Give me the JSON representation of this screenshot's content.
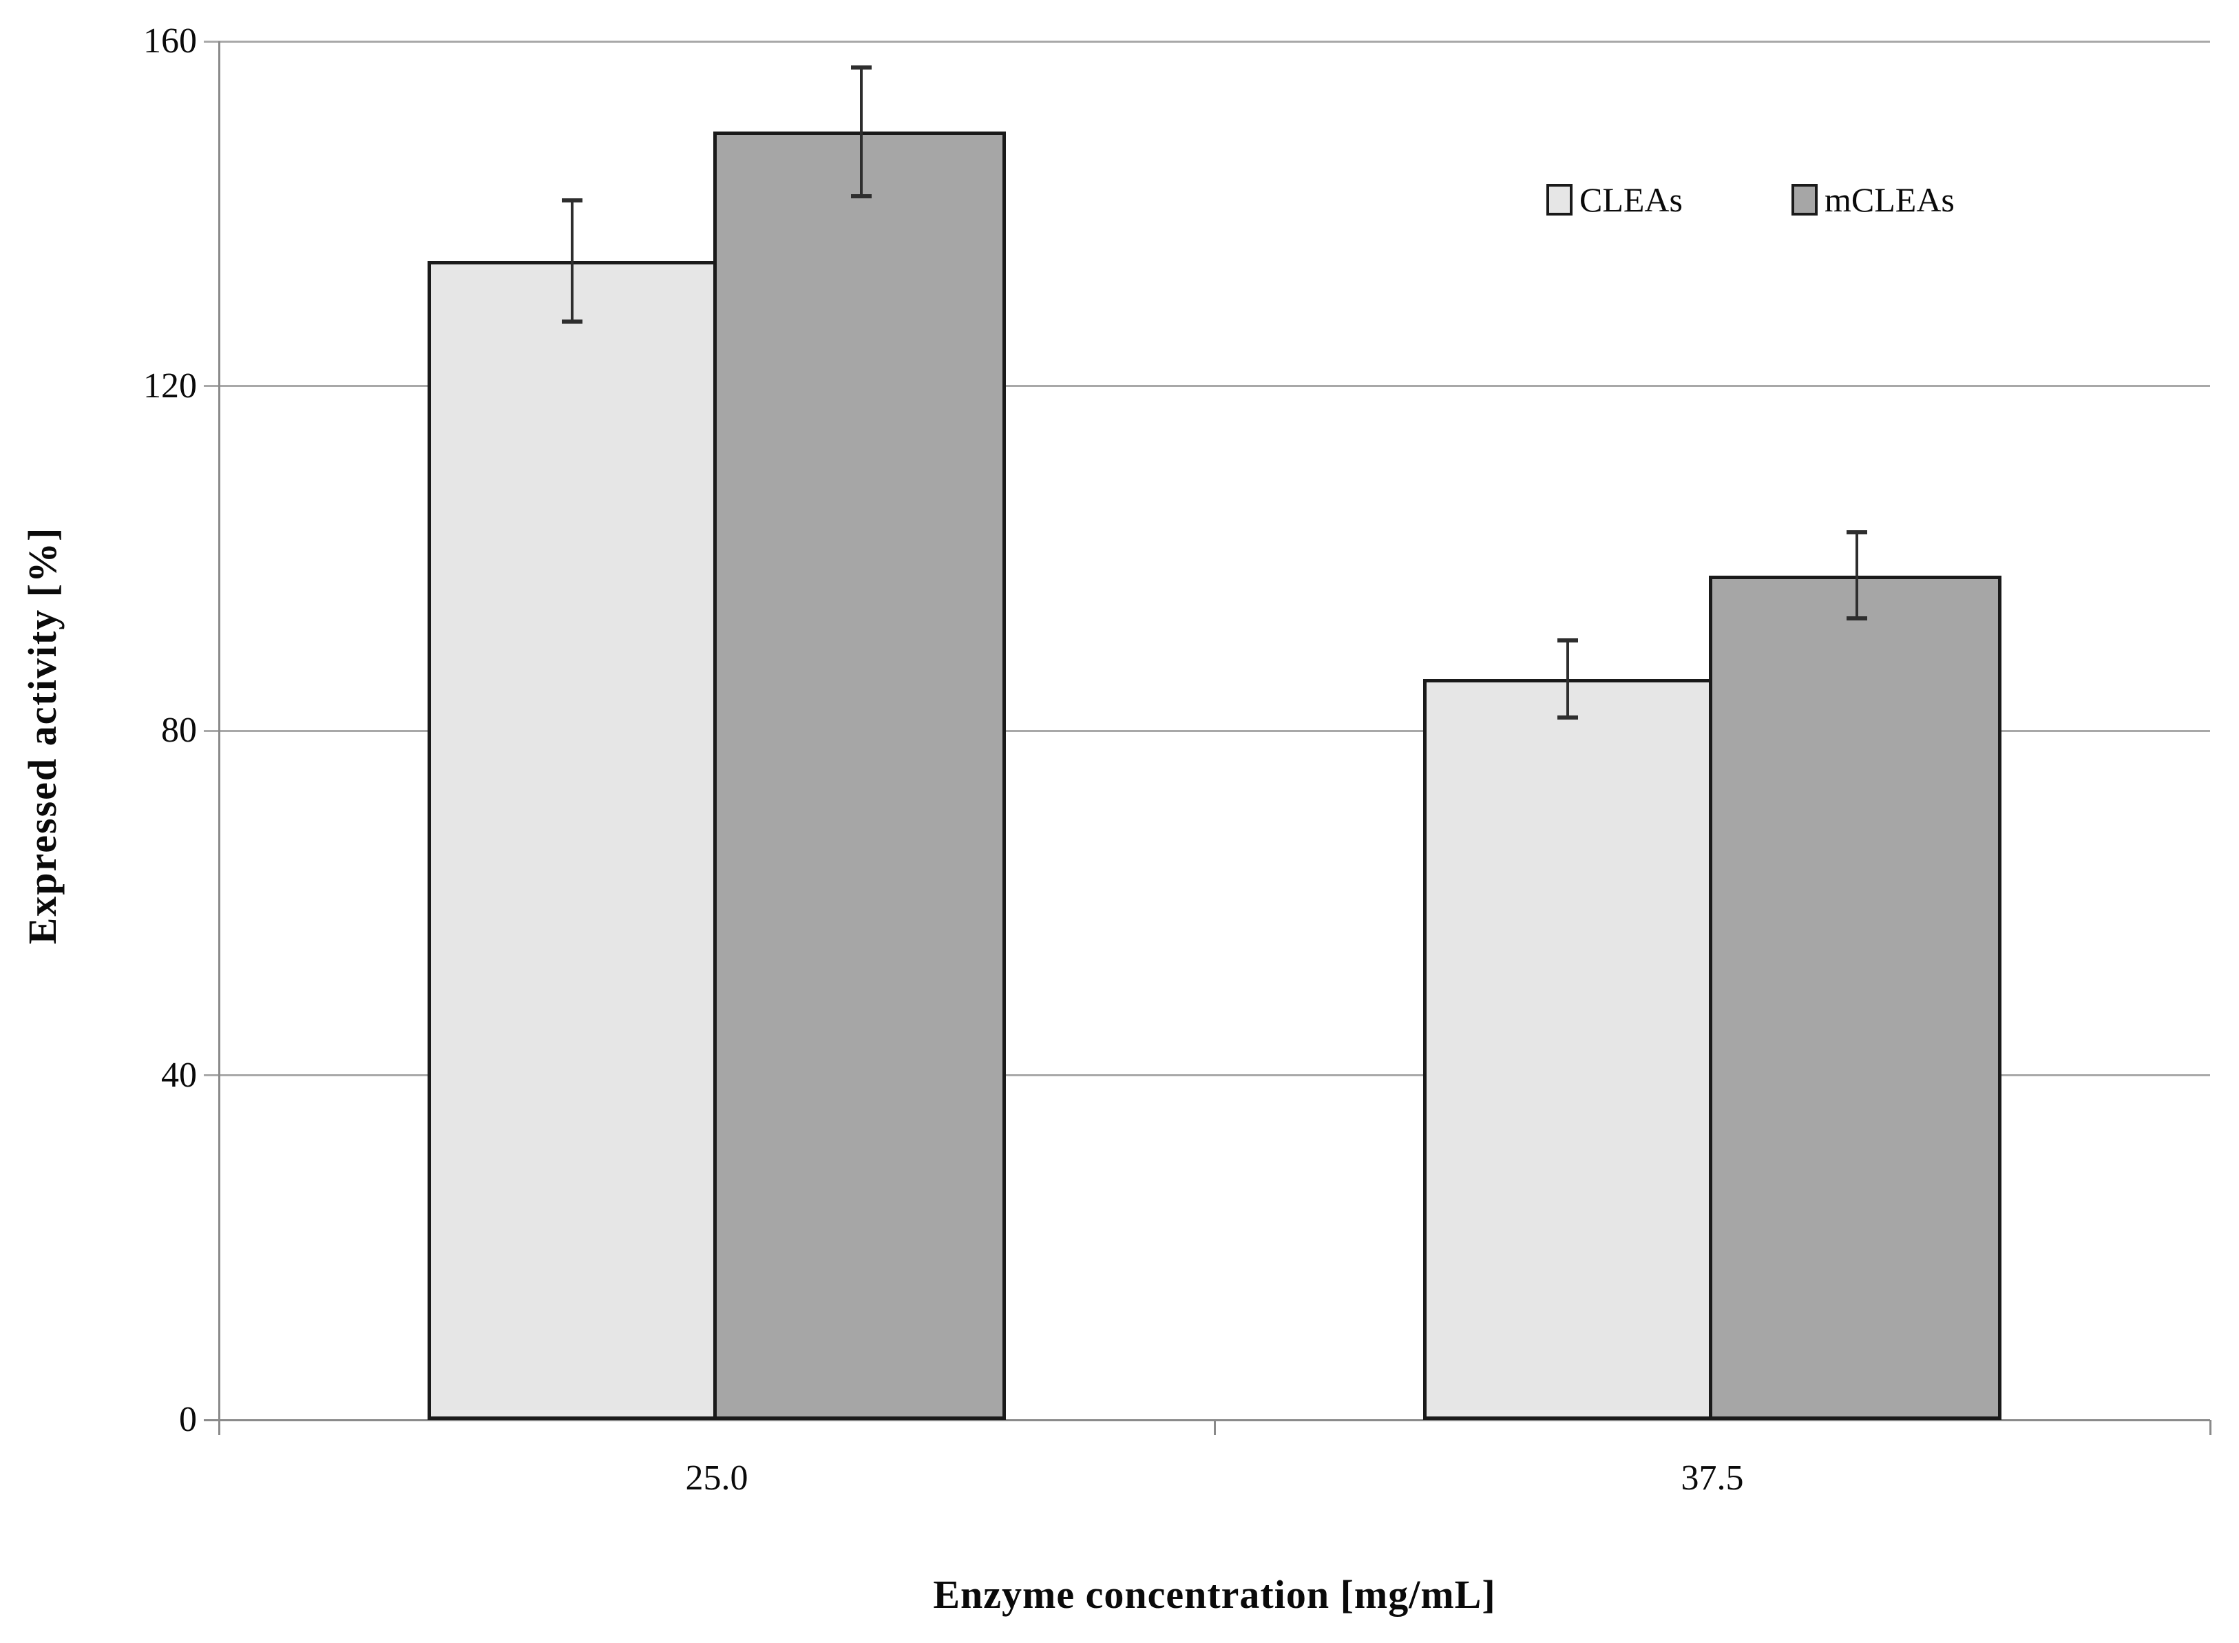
{
  "figure": {
    "background": "#ffffff"
  },
  "chart_data": {
    "type": "bar",
    "title": "",
    "categories": [
      "25.0",
      "37.5"
    ],
    "series": [
      {
        "name": "CLEAs",
        "color": "#e6e6e6",
        "values": [
          134.5,
          86
        ],
        "errors": [
          7,
          4.5
        ]
      },
      {
        "name": "mCLEAs",
        "color": "#a6a6a6",
        "values": [
          149.5,
          98
        ],
        "errors": [
          7.5,
          5
        ]
      }
    ],
    "xlabel": "Enzyme concentration [mg/mL]",
    "ylabel": "Expressed activity [%]",
    "ylim": [
      0,
      160
    ],
    "yticks": [
      0,
      40,
      80,
      120,
      160
    ],
    "grid": true,
    "error_bars": true,
    "legend_position": "top-right",
    "colors": {
      "grid": "#a8a8a8",
      "axis": "#8a8a8a",
      "bar_border": "#1a1a1a",
      "error": "#2e2e2e",
      "text": "#0a0a0a"
    }
  }
}
